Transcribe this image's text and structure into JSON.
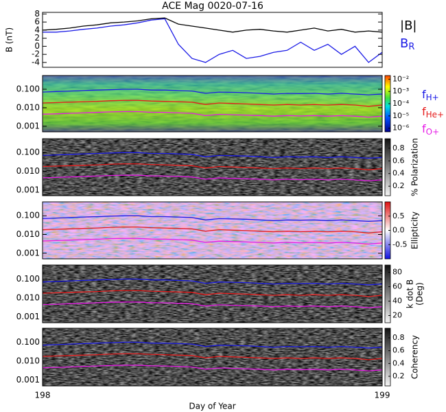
{
  "chart_data": [
    {
      "type": "line",
      "title": "ACE Mag 0020-07-16",
      "ylabel": "B (nT)",
      "xlim": [
        198,
        199
      ],
      "ylim": [
        -5.2,
        8.4
      ],
      "yticks": [
        8,
        6,
        4,
        2,
        0,
        -2,
        -4
      ],
      "x": [
        198,
        198.04,
        198.08,
        198.12,
        198.16,
        198.2,
        198.24,
        198.28,
        198.32,
        198.36,
        198.4,
        198.44,
        198.48,
        198.52,
        198.56,
        198.6,
        198.64,
        198.68,
        198.72,
        198.76,
        198.8,
        198.84,
        198.88,
        198.92,
        198.96,
        199
      ],
      "series": [
        {
          "name": "|B|",
          "color": "#000000",
          "values": [
            4.0,
            4.2,
            4.5,
            5.0,
            5.3,
            5.8,
            6.0,
            6.3,
            6.8,
            7.0,
            5.5,
            5.0,
            4.5,
            4.0,
            3.5,
            4.0,
            4.2,
            3.8,
            3.5,
            4.0,
            4.5,
            3.8,
            4.2,
            3.5,
            3.8,
            3.5
          ]
        },
        {
          "name": "B",
          "subscript": "R",
          "color": "#1a1ae6",
          "values": [
            3.5,
            3.5,
            3.8,
            4.2,
            4.5,
            5.0,
            5.3,
            5.8,
            6.5,
            6.8,
            0.5,
            -3.0,
            -4.0,
            -2.0,
            -1.0,
            -3.0,
            -2.5,
            -1.5,
            -1.0,
            1.0,
            -1.0,
            0.5,
            -2.0,
            0.0,
            -4.0,
            -1.5
          ]
        }
      ]
    },
    {
      "type": "heatmap",
      "log": true,
      "xlim": [
        198,
        199
      ],
      "ylim": [
        0.0005,
        0.55
      ],
      "yticks": [
        {
          "value": 0.1,
          "label": "0.100"
        },
        {
          "value": 0.01,
          "label": "0.010"
        },
        {
          "value": 0.001,
          "label": "0.001"
        }
      ],
      "colorbar": {
        "colormap": "spectral",
        "log": true,
        "lim": [
          5e-07,
          0.02
        ],
        "ticks": [
          {
            "value": 0.01,
            "label": "10⁻²"
          },
          {
            "value": 0.001,
            "label": "10⁻³"
          },
          {
            "value": 0.0001,
            "label": "10⁻⁴"
          },
          {
            "value": 1e-05,
            "label": "10⁻⁵"
          },
          {
            "value": 1e-06,
            "label": "10⁻⁶"
          }
        ]
      },
      "x": [
        198,
        198.04,
        198.08,
        198.12,
        198.16,
        198.2,
        198.24,
        198.28,
        198.32,
        198.36,
        198.4,
        198.44,
        198.48,
        198.52,
        198.56,
        198.6,
        198.64,
        198.68,
        198.72,
        198.76,
        198.8,
        198.84,
        198.88,
        198.92,
        198.96,
        199
      ],
      "series": [
        {
          "name": "f",
          "subscript": "H+",
          "color": "#1a1ae6",
          "values": [
            0.07,
            0.075,
            0.08,
            0.085,
            0.09,
            0.095,
            0.1,
            0.1,
            0.09,
            0.09,
            0.085,
            0.08,
            0.06,
            0.07,
            0.068,
            0.065,
            0.06,
            0.055,
            0.06,
            0.058,
            0.06,
            0.055,
            0.06,
            0.055,
            0.05,
            0.055
          ]
        },
        {
          "name": "f",
          "subscript": "He+",
          "color": "#e61a1a",
          "values": [
            0.018,
            0.019,
            0.02,
            0.021,
            0.022,
            0.024,
            0.025,
            0.025,
            0.023,
            0.022,
            0.021,
            0.02,
            0.015,
            0.018,
            0.017,
            0.016,
            0.015,
            0.014,
            0.015,
            0.014,
            0.015,
            0.014,
            0.015,
            0.014,
            0.012,
            0.014
          ]
        },
        {
          "name": "f",
          "subscript": "O+",
          "color": "#e61ae6",
          "values": [
            0.0045,
            0.0047,
            0.005,
            0.0053,
            0.0056,
            0.006,
            0.0062,
            0.0062,
            0.0057,
            0.0056,
            0.0053,
            0.005,
            0.0038,
            0.0044,
            0.0042,
            0.004,
            0.0038,
            0.0035,
            0.0038,
            0.0036,
            0.0038,
            0.0035,
            0.0038,
            0.0035,
            0.0031,
            0.0035
          ]
        }
      ]
    },
    {
      "type": "heatmap",
      "log": true,
      "xlim": [
        198,
        199
      ],
      "ylim": [
        0.0005,
        0.55
      ],
      "yticks": [
        {
          "value": 0.1,
          "label": "0.100"
        },
        {
          "value": 0.01,
          "label": "0.010"
        },
        {
          "value": 0.001,
          "label": "0.001"
        }
      ],
      "colorbar": {
        "colormap": "gray",
        "label": "% Polarization",
        "lim": [
          0.05,
          0.95
        ],
        "ticks": [
          0.8,
          0.6,
          0.4,
          0.2
        ]
      }
    },
    {
      "type": "heatmap",
      "log": true,
      "xlim": [
        198,
        199
      ],
      "ylim": [
        0.0005,
        0.55
      ],
      "yticks": [
        {
          "value": 0.1,
          "label": "0.100"
        },
        {
          "value": 0.01,
          "label": "0.010"
        },
        {
          "value": 0.001,
          "label": "0.001"
        }
      ],
      "colorbar": {
        "colormap": "bwr",
        "label": "Ellipticity",
        "lim": [
          -1,
          1
        ],
        "ticks": [
          0.5,
          {
            "value": 0,
            "label": "0.0"
          },
          -0.5
        ]
      }
    },
    {
      "type": "heatmap",
      "log": true,
      "xlim": [
        198,
        199
      ],
      "ylim": [
        0.0005,
        0.55
      ],
      "yticks": [
        {
          "value": 0.1,
          "label": "0.100"
        },
        {
          "value": 0.01,
          "label": "0.010"
        },
        {
          "value": 0.001,
          "label": "0.001"
        }
      ],
      "colorbar": {
        "colormap": "gray",
        "label": "k dot B",
        "label2": "(Deg)",
        "lim": [
          10,
          90
        ],
        "ticks": [
          80,
          60,
          40,
          20
        ]
      }
    },
    {
      "type": "heatmap",
      "log": true,
      "xlim": [
        198,
        199
      ],
      "ylim": [
        0.0005,
        0.55
      ],
      "yticks": [
        {
          "value": 0.1,
          "label": "0.100"
        },
        {
          "value": 0.01,
          "label": "0.010"
        },
        {
          "value": 0.001,
          "label": "0.001"
        }
      ],
      "colorbar": {
        "colormap": "gray",
        "label": "Coherency",
        "lim": [
          0.05,
          0.95
        ],
        "ticks": [
          0.8,
          0.6,
          0.4,
          0.2
        ]
      },
      "xticks": [
        198,
        199
      ],
      "xlabel": "Day of Year"
    }
  ]
}
